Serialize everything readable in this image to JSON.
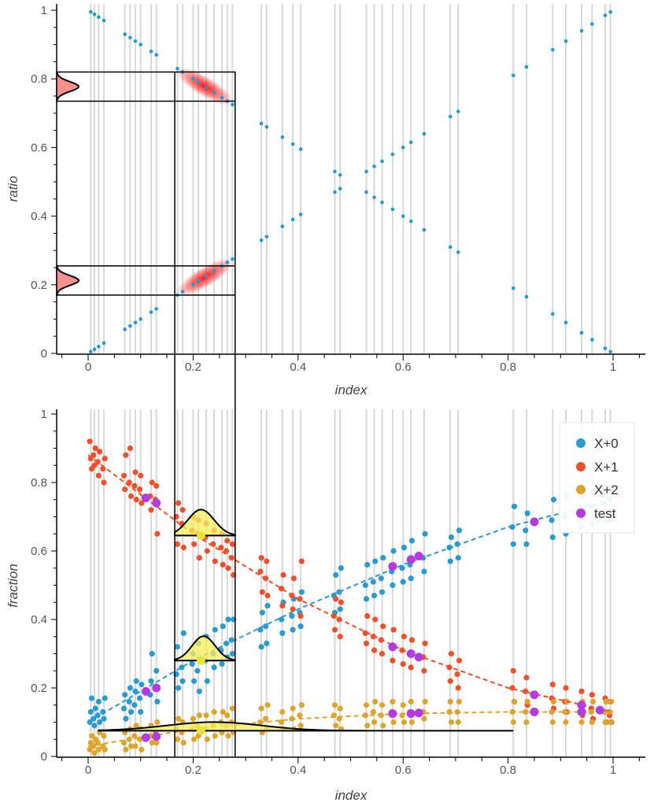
{
  "chart_data": [
    {
      "type": "scatter",
      "xlabel": "index",
      "ylabel": "ratio",
      "xlim": [
        -0.06,
        1.06
      ],
      "ylim": [
        0,
        1
      ],
      "x_ticks": [
        "0",
        "0.2",
        "0.4",
        "0.6",
        "0.8",
        "1"
      ],
      "y_ticks": [
        "0",
        "0.2",
        "0.4",
        "0.6",
        "0.8",
        "1"
      ],
      "color": "#1f9bd4",
      "note_selection_bands": [
        [
          0.735,
          0.82
        ],
        [
          0.17,
          0.255
        ]
      ],
      "selection_x_range": [
        0.165,
        0.28
      ]
    },
    {
      "type": "scatter",
      "xlabel": "index",
      "ylabel": "fraction",
      "xlim": [
        -0.06,
        1.06
      ],
      "ylim": [
        0,
        1
      ],
      "x_ticks": [
        "0",
        "0.2",
        "0.4",
        "0.6",
        "0.8",
        "1"
      ],
      "y_ticks": [
        "0",
        "0.2",
        "0.4",
        "0.6",
        "0.8",
        "1"
      ],
      "legend_position": "top-right",
      "index": [
        0.005,
        0.012,
        0.02,
        0.03,
        0.07,
        0.08,
        0.09,
        0.1,
        0.12,
        0.13,
        0.17,
        0.18,
        0.2,
        0.21,
        0.225,
        0.24,
        0.255,
        0.265,
        0.275,
        0.33,
        0.34,
        0.37,
        0.39,
        0.405,
        0.47,
        0.48,
        0.53,
        0.545,
        0.56,
        0.58,
        0.6,
        0.615,
        0.64,
        0.69,
        0.705,
        0.81,
        0.835,
        0.885,
        0.91,
        0.94,
        0.96,
        0.985,
        0.995
      ],
      "series": [
        {
          "name": "X+0",
          "color": "#2a9bd1",
          "values": [
            [
              0.1,
              0.13,
              0.17
            ],
            [
              0.11,
              0.09,
              0.14
            ],
            [
              0.12,
              0.16,
              0.1
            ],
            [
              0.13,
              0.11,
              0.17
            ],
            [
              0.14,
              0.18,
              0.11
            ],
            [
              0.16,
              0.2,
              0.13
            ],
            [
              0.15,
              0.19,
              0.22
            ],
            [
              0.17,
              0.13,
              0.21
            ],
            [
              0.18,
              0.22,
              0.3
            ],
            [
              0.2,
              0.25,
              0.16
            ],
            [
              0.24,
              0.32,
              0.2
            ],
            [
              0.26,
              0.22,
              0.36
            ],
            [
              0.27,
              0.3,
              0.22
            ],
            [
              0.25,
              0.33,
              0.19
            ],
            [
              0.28,
              0.35,
              0.22
            ],
            [
              0.3,
              0.26,
              0.37
            ],
            [
              0.31,
              0.27,
              0.38
            ],
            [
              0.33,
              0.29,
              0.4
            ],
            [
              0.34,
              0.3,
              0.4
            ],
            [
              0.37,
              0.32,
              0.42
            ],
            [
              0.38,
              0.33,
              0.44
            ],
            [
              0.4,
              0.36,
              0.45
            ],
            [
              0.41,
              0.37,
              0.46
            ],
            [
              0.42,
              0.38,
              0.48
            ],
            [
              0.47,
              0.42,
              0.53
            ],
            [
              0.48,
              0.43,
              0.55
            ],
            [
              0.5,
              0.46,
              0.56
            ],
            [
              0.51,
              0.47,
              0.57
            ],
            [
              0.52,
              0.48,
              0.58
            ],
            [
              0.54,
              0.5,
              0.6
            ],
            [
              0.55,
              0.51,
              0.61
            ],
            [
              0.56,
              0.52,
              0.63
            ],
            [
              0.58,
              0.54,
              0.65
            ],
            [
              0.61,
              0.57,
              0.64
            ],
            [
              0.62,
              0.58,
              0.66
            ],
            [
              0.67,
              0.62,
              0.73
            ],
            [
              0.66,
              0.62,
              0.71
            ],
            [
              0.69,
              0.64,
              0.75
            ],
            [
              0.7,
              0.65,
              0.76
            ],
            [
              0.72,
              0.67,
              0.76
            ],
            [
              0.73,
              0.68,
              0.77
            ],
            [
              0.74,
              0.69,
              0.77
            ],
            [
              0.75,
              0.7,
              0.78
            ]
          ],
          "fit": [
            [
              0,
              0.1
            ],
            [
              0.2,
              0.28
            ],
            [
              0.4,
              0.43
            ],
            [
              0.6,
              0.56
            ],
            [
              0.8,
              0.67
            ],
            [
              1,
              0.75
            ]
          ]
        },
        {
          "name": "X+1",
          "color": "#f0502a",
          "values": [
            [
              0.92,
              0.87,
              0.84
            ],
            [
              0.88,
              0.85,
              0.9
            ],
            [
              0.86,
              0.82,
              0.89
            ],
            [
              0.84,
              0.8,
              0.87
            ],
            [
              0.82,
              0.78,
              0.88
            ],
            [
              0.8,
              0.9,
              0.76
            ],
            [
              0.79,
              0.83,
              0.75
            ],
            [
              0.78,
              0.82,
              0.74
            ],
            [
              0.76,
              0.72,
              0.8
            ],
            [
              0.75,
              0.79,
              0.65
            ],
            [
              0.7,
              0.62,
              0.74
            ],
            [
              0.68,
              0.72,
              0.61
            ],
            [
              0.66,
              0.7,
              0.62
            ],
            [
              0.65,
              0.69,
              0.58
            ],
            [
              0.64,
              0.68,
              0.6
            ],
            [
              0.62,
              0.66,
              0.57
            ],
            [
              0.61,
              0.65,
              0.56
            ],
            [
              0.6,
              0.63,
              0.55
            ],
            [
              0.58,
              0.62,
              0.53
            ],
            [
              0.54,
              0.58,
              0.48
            ],
            [
              0.52,
              0.57,
              0.47
            ],
            [
              0.49,
              0.44,
              0.53
            ],
            [
              0.47,
              0.43,
              0.52
            ],
            [
              0.46,
              0.41,
              0.57
            ],
            [
              0.41,
              0.37,
              0.46
            ],
            [
              0.4,
              0.35,
              0.45
            ],
            [
              0.36,
              0.33,
              0.41
            ],
            [
              0.35,
              0.31,
              0.4
            ],
            [
              0.34,
              0.3,
              0.38
            ],
            [
              0.32,
              0.28,
              0.37
            ],
            [
              0.31,
              0.27,
              0.35
            ],
            [
              0.3,
              0.26,
              0.34
            ],
            [
              0.29,
              0.25,
              0.33
            ],
            [
              0.26,
              0.22,
              0.3
            ],
            [
              0.24,
              0.2,
              0.28
            ],
            [
              0.2,
              0.25,
              0.16
            ],
            [
              0.19,
              0.23,
              0.15
            ],
            [
              0.17,
              0.21,
              0.14
            ],
            [
              0.16,
              0.2,
              0.13
            ],
            [
              0.15,
              0.19,
              0.12
            ],
            [
              0.14,
              0.18,
              0.11
            ],
            [
              0.13,
              0.17,
              0.1
            ],
            [
              0.12,
              0.16,
              0.1
            ]
          ],
          "fit": [
            [
              0,
              0.88
            ],
            [
              0.2,
              0.65
            ],
            [
              0.4,
              0.46
            ],
            [
              0.6,
              0.31
            ],
            [
              0.8,
              0.2
            ],
            [
              1,
              0.13
            ]
          ]
        },
        {
          "name": "X+2",
          "color": "#dea52c",
          "values": [
            [
              0.02,
              0.04,
              0.06
            ],
            [
              0.03,
              0.01,
              0.05
            ],
            [
              0.04,
              0.02,
              0.07
            ],
            [
              0.03,
              0.06,
              0.02
            ],
            [
              0.04,
              0.07,
              0.02
            ],
            [
              0.05,
              0.08,
              0.03
            ],
            [
              0.06,
              0.03,
              0.09
            ],
            [
              0.05,
              0.08,
              0.02
            ],
            [
              0.06,
              0.09,
              0.04
            ],
            [
              0.07,
              0.04,
              0.1
            ],
            [
              0.08,
              0.05,
              0.11
            ],
            [
              0.07,
              0.1,
              0.04
            ],
            [
              0.08,
              0.11,
              0.05
            ],
            [
              0.09,
              0.06,
              0.12
            ],
            [
              0.08,
              0.12,
              0.05
            ],
            [
              0.09,
              0.13,
              0.06
            ],
            [
              0.1,
              0.07,
              0.13
            ],
            [
              0.09,
              0.12,
              0.06
            ],
            [
              0.1,
              0.14,
              0.07
            ],
            [
              0.1,
              0.14,
              0.07
            ],
            [
              0.11,
              0.08,
              0.15
            ],
            [
              0.1,
              0.13,
              0.08
            ],
            [
              0.11,
              0.14,
              0.08
            ],
            [
              0.12,
              0.09,
              0.15
            ],
            [
              0.12,
              0.15,
              0.09
            ],
            [
              0.11,
              0.14,
              0.08
            ],
            [
              0.12,
              0.15,
              0.09
            ],
            [
              0.13,
              0.1,
              0.16
            ],
            [
              0.12,
              0.15,
              0.09
            ],
            [
              0.13,
              0.16,
              0.1
            ],
            [
              0.12,
              0.15,
              0.1
            ],
            [
              0.13,
              0.16,
              0.1
            ],
            [
              0.13,
              0.11,
              0.16
            ],
            [
              0.13,
              0.16,
              0.1
            ],
            [
              0.13,
              0.1,
              0.16
            ],
            [
              0.13,
              0.1,
              0.16
            ],
            [
              0.13,
              0.1,
              0.16
            ],
            [
              0.13,
              0.1,
              0.16
            ],
            [
              0.13,
              0.1,
              0.16
            ],
            [
              0.13,
              0.1,
              0.16
            ],
            [
              0.13,
              0.1,
              0.16
            ],
            [
              0.13,
              0.1,
              0.16
            ],
            [
              0.13,
              0.1,
              0.16
            ]
          ],
          "fit": [
            [
              0,
              0.03
            ],
            [
              0.2,
              0.08
            ],
            [
              0.4,
              0.11
            ],
            [
              0.6,
              0.125
            ],
            [
              0.8,
              0.13
            ],
            [
              1,
              0.13
            ]
          ]
        },
        {
          "name": "test",
          "color": "#b43be0",
          "points": [
            [
              0.11,
              0.755
            ],
            [
              0.13,
              0.74
            ],
            [
              0.11,
              0.19
            ],
            [
              0.13,
              0.2
            ],
            [
              0.11,
              0.055
            ],
            [
              0.13,
              0.058
            ],
            [
              0.58,
              0.555
            ],
            [
              0.615,
              0.575
            ],
            [
              0.63,
              0.585
            ],
            [
              0.58,
              0.32
            ],
            [
              0.615,
              0.3
            ],
            [
              0.63,
              0.29
            ],
            [
              0.58,
              0.125
            ],
            [
              0.615,
              0.125
            ],
            [
              0.63,
              0.127
            ],
            [
              0.85,
              0.685
            ],
            [
              0.85,
              0.18
            ],
            [
              0.85,
              0.13
            ],
            [
              0.94,
              0.15
            ],
            [
              0.975,
              0.135
            ],
            [
              0.94,
              0.13
            ]
          ]
        }
      ],
      "selected_points": [
        [
          0.215,
          0.645
        ],
        [
          0.215,
          0.28
        ],
        [
          0.215,
          0.075
        ]
      ],
      "selection_x_range": [
        0.165,
        0.28
      ],
      "selection_color": "#f7ef5a"
    }
  ]
}
